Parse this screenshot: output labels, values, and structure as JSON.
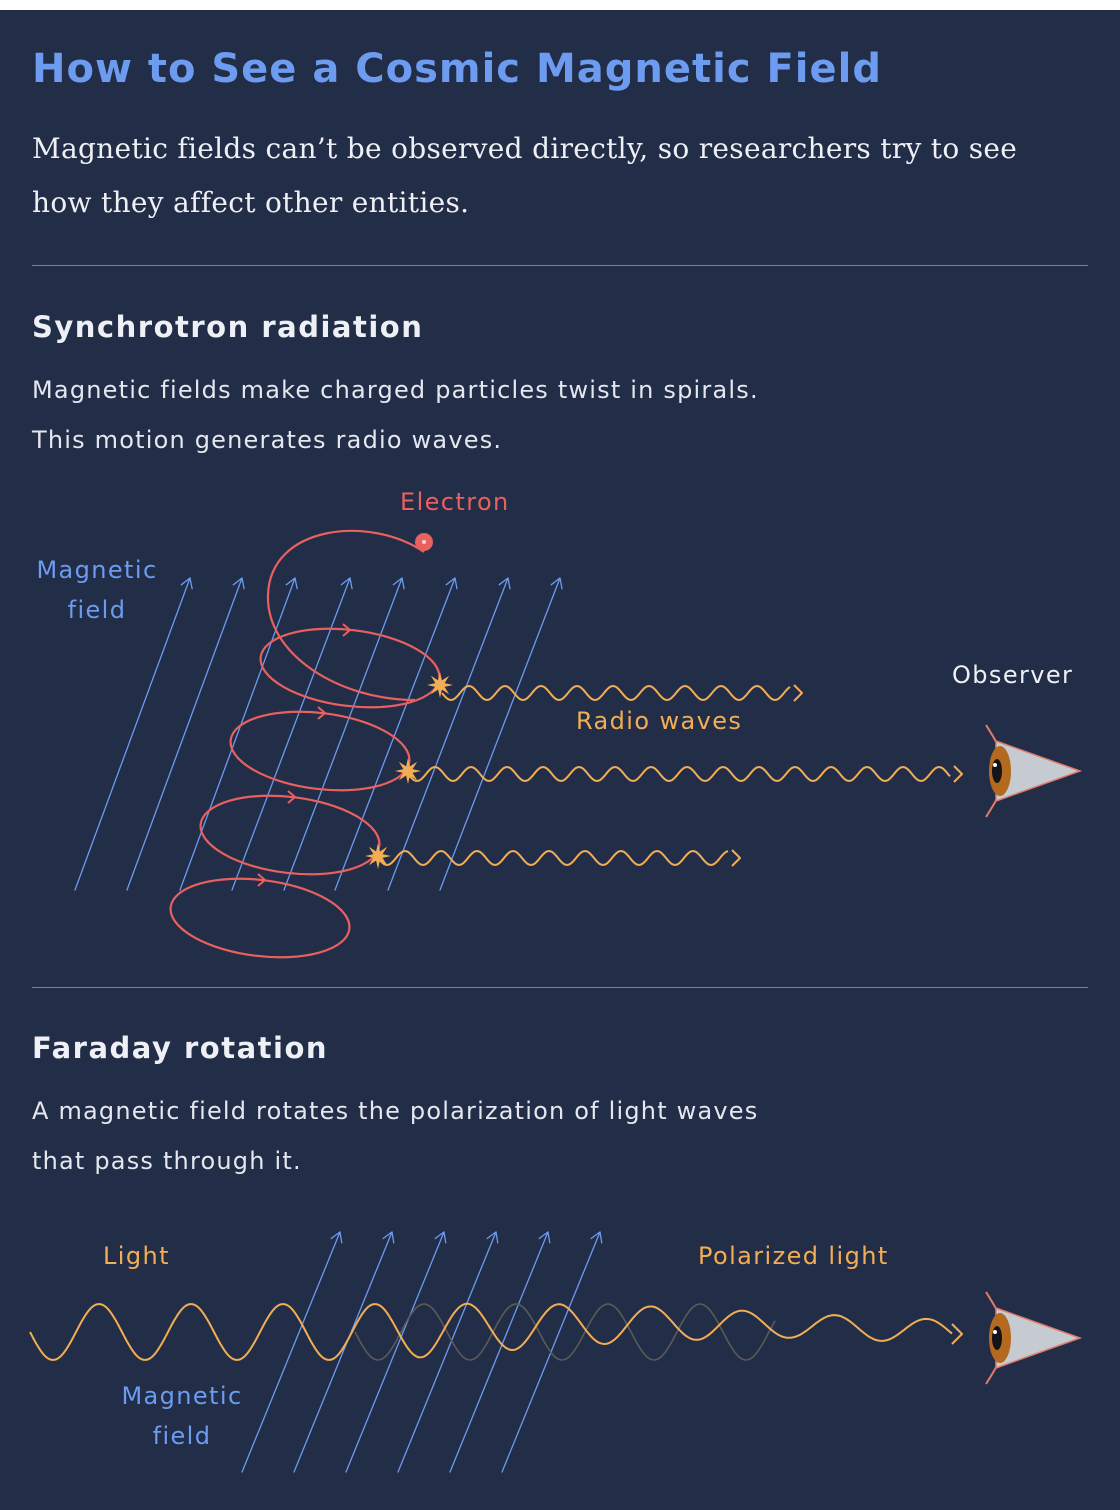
{
  "title": "How to See a Cosmic Magnetic Field",
  "intro": "Magnetic fields can’t be observed directly, so researchers try to see how they affect other entities.",
  "synchrotron": {
    "heading": "Synchrotron radiation",
    "description_line1": "Magnetic fields make charged particles twist in spirals.",
    "description_line2": "This motion generates radio waves.",
    "label_electron": "Electron",
    "label_field_line1": "Magnetic",
    "label_field_line2": "field",
    "label_radio_waves": "Radio waves",
    "label_observer": "Observer"
  },
  "faraday": {
    "heading": "Faraday rotation",
    "description_line1": "A magnetic field rotates the polarization of light waves",
    "description_line2": "that pass through it.",
    "label_light": "Light",
    "label_polarized": "Polarized light",
    "label_field_line1": "Magnetic",
    "label_field_line2": "field"
  },
  "colors": {
    "background": "#222d47",
    "field_blue": "#6c9bf0",
    "electron_red": "#e86060",
    "wave_orange": "#f3ad55",
    "text": "#eef0f5"
  }
}
